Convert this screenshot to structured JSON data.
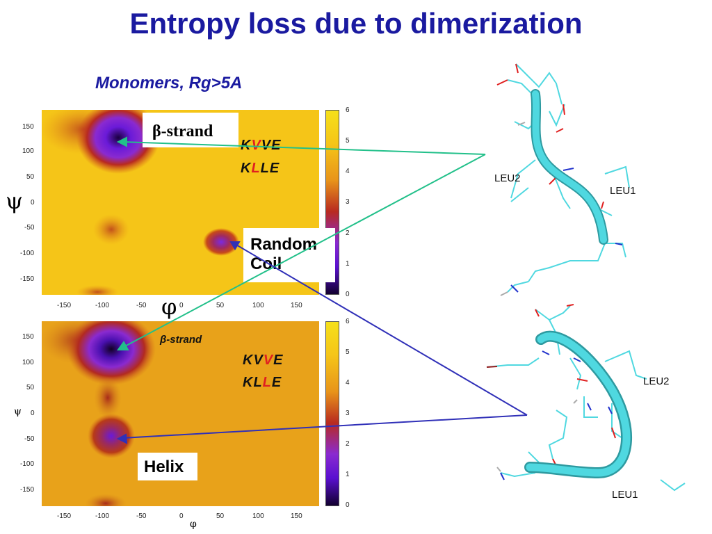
{
  "title": "Entropy loss due to dimerization",
  "subtitle": "Monomers, Rg>5A",
  "colors": {
    "title": "#1a1aa0",
    "map_background_top": "#f5c518",
    "map_background_bottom": "#e8a21a",
    "highlight_residue": "#e02020",
    "arrow_green": "#22c08a",
    "arrow_blue": "#3030b8",
    "tube": "#4fd8e0"
  },
  "top_plot": {
    "x_ticks": [
      "-150",
      "-100",
      "-50",
      "0",
      "50",
      "100",
      "150"
    ],
    "y_ticks": [
      "150",
      "100",
      "50",
      "0",
      "-50",
      "-100",
      "-150"
    ],
    "colorbar_ticks": [
      "6",
      "5",
      "4",
      "3",
      "2",
      "1",
      "0"
    ],
    "y_axis_symbol": "ψ",
    "x_axis_symbol": "φ",
    "beta_label_symbol": "β",
    "beta_label_text": "-strand",
    "random_coil_label_line1": "Random",
    "random_coil_label_line2": "Coil",
    "seq1": {
      "a": "K",
      "b": "V",
      "c": "VE"
    },
    "seq2": {
      "a": "K",
      "b": "L",
      "c": "LE"
    }
  },
  "bottom_plot": {
    "x_ticks": [
      "-150",
      "-100",
      "-50",
      "0",
      "50",
      "100",
      "150"
    ],
    "y_ticks": [
      "150",
      "100",
      "50",
      "0",
      "-50",
      "-100",
      "-150"
    ],
    "colorbar_ticks": [
      "6",
      "5",
      "4",
      "3",
      "2",
      "1",
      "0"
    ],
    "y_axis_symbol": "ψ",
    "x_axis_symbol": "φ",
    "beta_label": "β-strand",
    "helix_label": "Helix",
    "seq1": {
      "a": "KV",
      "b": "V",
      "c": "E"
    },
    "seq2": {
      "a": "KL",
      "b": "L",
      "c": "E"
    }
  },
  "structure_top": {
    "res_a": "LEU2",
    "res_b": "LEU1"
  },
  "structure_bottom": {
    "res_a": "LEU2",
    "res_b": "LEU1"
  }
}
